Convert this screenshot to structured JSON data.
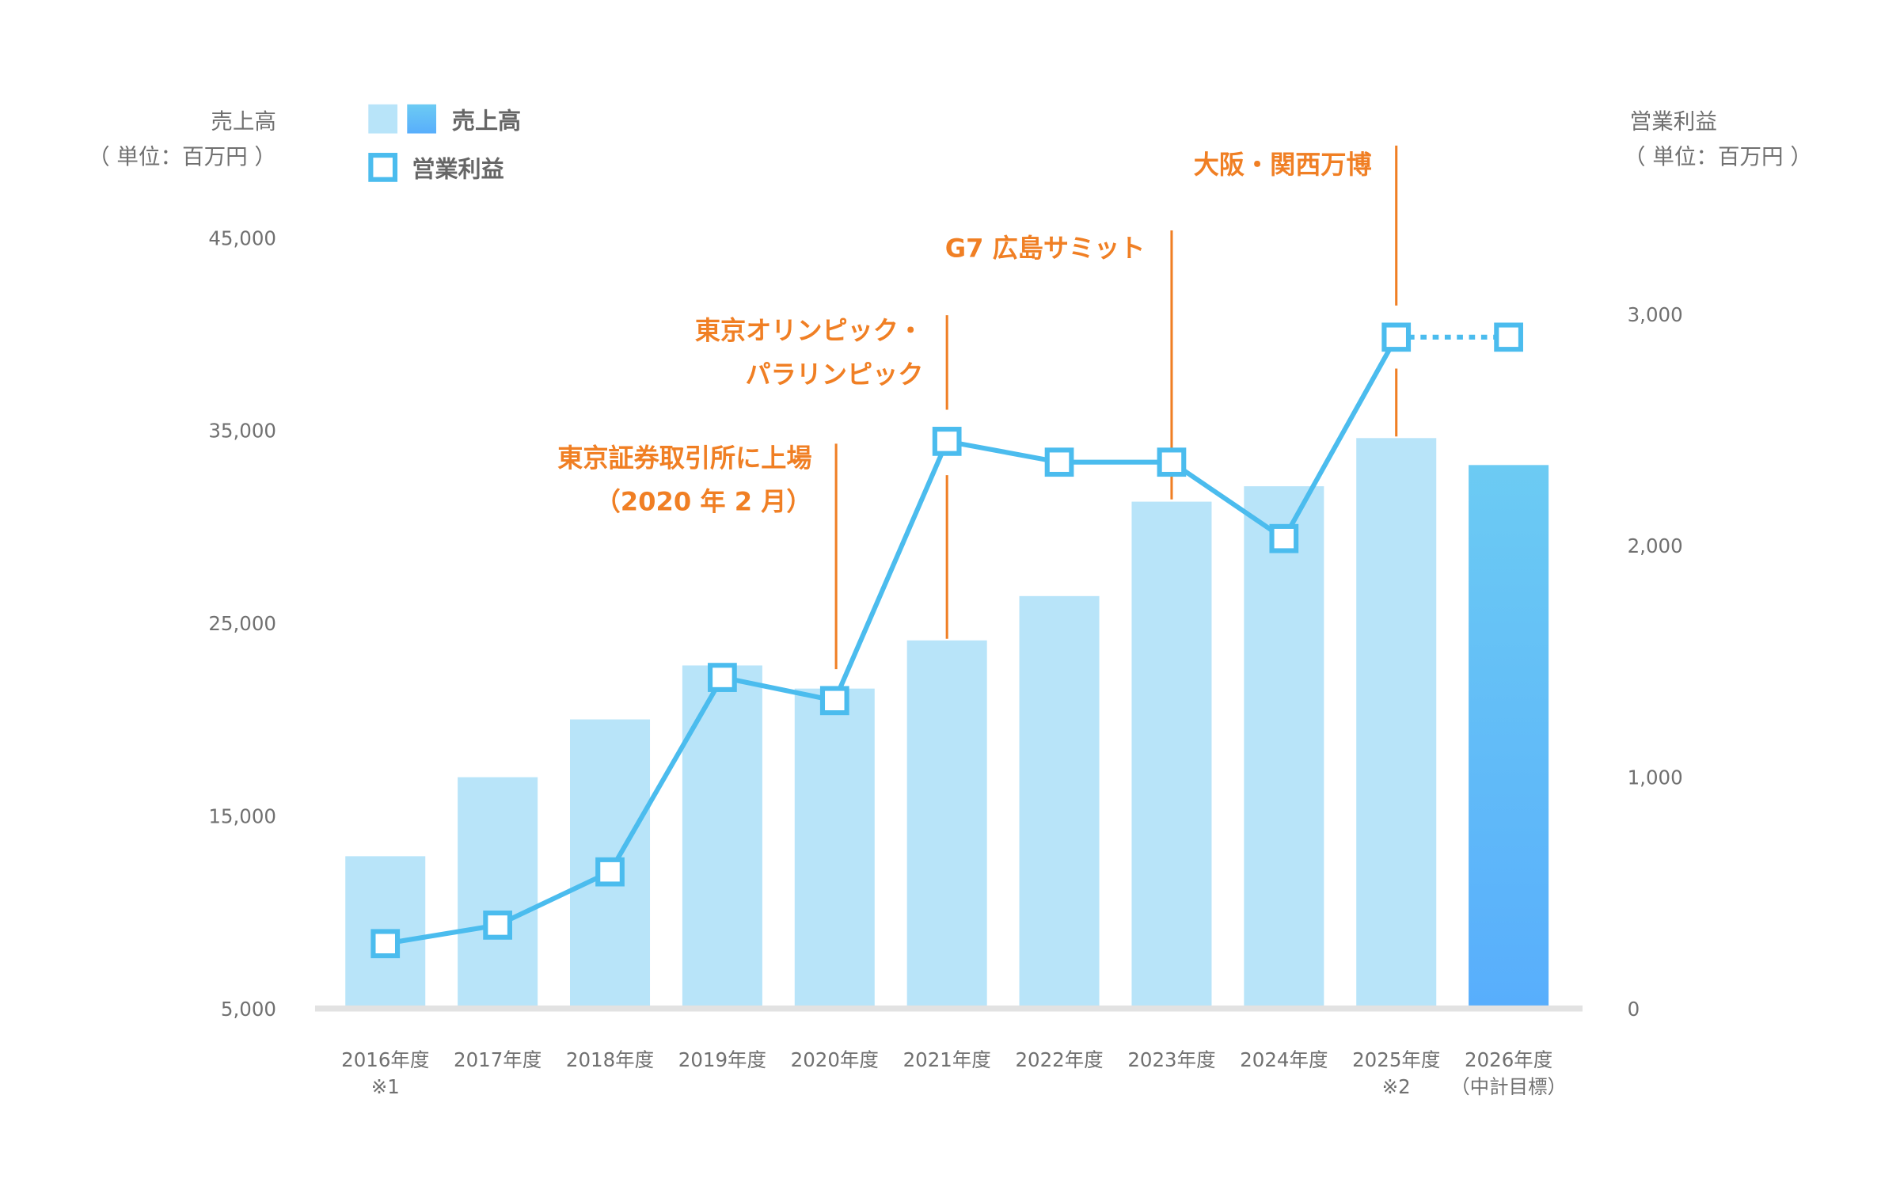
{
  "chart_data": {
    "type": "bar+line",
    "categories": [
      "2016年度",
      "2017年度",
      "2018年度",
      "2019年度",
      "2020年度",
      "2021年度",
      "2022年度",
      "2023年度",
      "2024年度",
      "2025年度",
      "2026年度"
    ],
    "category_notes": [
      "※1",
      "",
      "",
      "",
      "",
      "",
      "",
      "",
      "",
      "※2",
      "（中計目標）"
    ],
    "series": [
      {
        "name": "売上高",
        "type": "bar",
        "axis": "left",
        "values": [
          12900,
          17000,
          20000,
          22800,
          21600,
          24100,
          26400,
          31300,
          32100,
          34600,
          33200
        ]
      },
      {
        "name": "営業利益",
        "type": "line",
        "axis": "right",
        "values": [
          280,
          360,
          590,
          1430,
          1330,
          2450,
          2360,
          2360,
          2030,
          2900,
          2900
        ]
      }
    ],
    "left_axis": {
      "label": "売上高",
      "unit": "（ 単位：百万円 ）",
      "ylim": [
        5000,
        45000
      ],
      "ticks": [
        "5,000",
        "15,000",
        "25,000",
        "35,000",
        "45,000"
      ],
      "tick_values": [
        5000,
        15000,
        25000,
        35000,
        45000
      ]
    },
    "right_axis": {
      "label": "営業利益",
      "unit": "（ 単位：百万円 ）",
      "ylim": [
        0,
        3000
      ],
      "ticks": [
        "0",
        "1,000",
        "2,000",
        "3,000"
      ],
      "tick_values": [
        0,
        1000,
        2000,
        3000
      ]
    },
    "legend": {
      "placement": "top-left",
      "bar_label": "売上高",
      "line_label": "営業利益"
    },
    "annotations": [
      {
        "category": "2020年度",
        "lines": [
          "東京証券取引所に上場",
          "（2020 年 2 月）"
        ]
      },
      {
        "category": "2021年度",
        "lines": [
          "東京オリンピック・",
          "パラリンピック"
        ]
      },
      {
        "category": "2023年度",
        "lines": [
          "G7 広島サミット"
        ]
      },
      {
        "category": "2025年度",
        "lines": [
          "大阪・関西万博"
        ]
      }
    ],
    "grid": false
  },
  "colors": {
    "bar": "#b8e4f9",
    "bar_target_top": "#6ccbf3",
    "bar_target_bottom": "#58aefc",
    "line": "#4bbcee",
    "annotation": "#f07f24",
    "text": "#707070",
    "baseline": "#e2e2e2"
  }
}
